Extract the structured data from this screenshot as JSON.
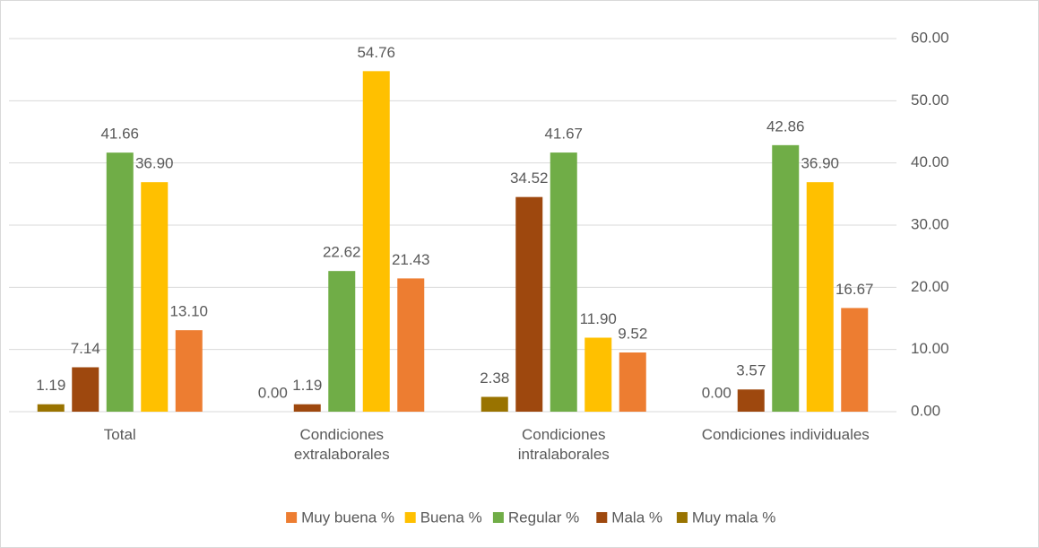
{
  "chart_data": {
    "type": "bar",
    "categories": [
      "Total",
      "Condiciones\nextralaborales",
      "Condiciones\nintralaborales",
      "Condiciones individuales"
    ],
    "series": [
      {
        "name": "Muy buena %",
        "color": "#ED7D31",
        "values": [
          13.1,
          21.43,
          9.52,
          16.67
        ],
        "value_labels": [
          "13.10",
          "21.43",
          "9.52",
          "16.67"
        ]
      },
      {
        "name": "Buena %",
        "color": "#FFC000",
        "values": [
          36.9,
          54.76,
          11.9,
          36.9
        ],
        "value_labels": [
          "36.90",
          "54.76",
          "11.90",
          "36.90"
        ]
      },
      {
        "name": "Regular %",
        "color": "#70AD47",
        "values": [
          41.66,
          22.62,
          41.67,
          42.86
        ],
        "value_labels": [
          "41.66",
          "22.62",
          "41.67",
          "42.86"
        ]
      },
      {
        "name": "Mala %",
        "color": "#9E480E",
        "values": [
          7.14,
          1.19,
          34.52,
          3.57
        ],
        "value_labels": [
          "7.14",
          "1.19",
          "34.52",
          "3.57"
        ]
      },
      {
        "name": "Muy mala %",
        "color": "#997300",
        "values": [
          1.19,
          0.0,
          2.38,
          0.0
        ],
        "value_labels": [
          "1.19",
          "0.00",
          "2.38",
          "0.00"
        ]
      }
    ],
    "ylim": [
      0,
      60
    ],
    "yticks": [
      {
        "value": 0,
        "label": "0.00"
      },
      {
        "value": 10,
        "label": "10.00"
      },
      {
        "value": 20,
        "label": "20.00"
      },
      {
        "value": 30,
        "label": "30.00"
      },
      {
        "value": 40,
        "label": "40.00"
      },
      {
        "value": 50,
        "label": "50.00"
      },
      {
        "value": 60,
        "label": "60.00"
      }
    ],
    "grid": true,
    "legend": "bottom"
  }
}
